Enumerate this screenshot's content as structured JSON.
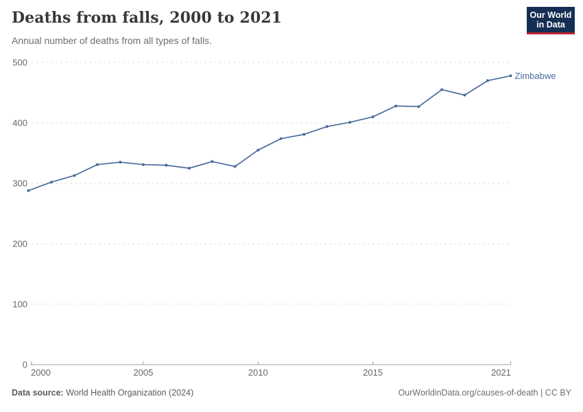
{
  "header": {
    "title": "Deaths from falls, 2000 to 2021",
    "subtitle": "Annual number of deaths from all types of falls.",
    "logo": {
      "line1": "Our World",
      "line2": "in Data",
      "background_color": "#152e53",
      "accent_color": "#b5232d"
    }
  },
  "chart_data": {
    "type": "line",
    "title": "Deaths from falls, 2000 to 2021",
    "subtitle": "Annual number of deaths from all types of falls.",
    "xlabel": "",
    "ylabel": "",
    "x": [
      2000,
      2001,
      2002,
      2003,
      2004,
      2005,
      2006,
      2007,
      2008,
      2009,
      2010,
      2011,
      2012,
      2013,
      2014,
      2015,
      2016,
      2017,
      2018,
      2019,
      2020,
      2021
    ],
    "series": [
      {
        "name": "Zimbabwe",
        "color": "#4c6a9c",
        "values": [
          288,
          302,
          313,
          331,
          335,
          331,
          330,
          325,
          336,
          328,
          355,
          374,
          381,
          394,
          401,
          410,
          428,
          427,
          455,
          446,
          470,
          478
        ]
      }
    ],
    "x_ticks": [
      2000,
      2005,
      2010,
      2015,
      2021
    ],
    "y_ticks": [
      0,
      100,
      200,
      300,
      400,
      500
    ],
    "xlim": [
      2000,
      2021
    ],
    "ylim": [
      0,
      500
    ],
    "grid": "horizontal dashed",
    "legend_position": "end-of-line label",
    "axis_colors": {
      "grid_color": "#dcdcdc",
      "axis_color": "#a1a1a1",
      "tick_label_color": "#666666"
    }
  },
  "footer": {
    "source_label": "Data source:",
    "source_value": " World Health Organization (2024)",
    "link": "OurWorldinData.org/causes-of-death | CC BY"
  }
}
